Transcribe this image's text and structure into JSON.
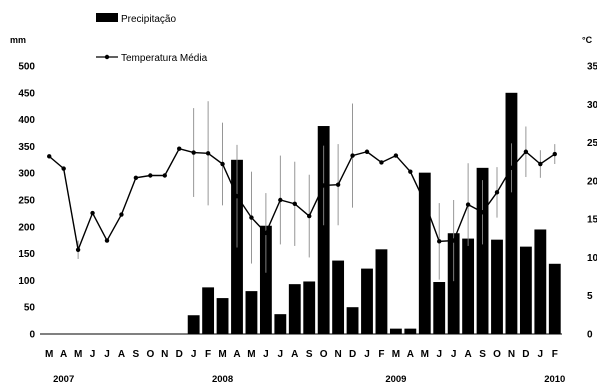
{
  "chart_data": {
    "type": "bar+line",
    "legend": [
      {
        "label": "Precipitação",
        "marker": "bar"
      },
      {
        "label": "Temperatura Média",
        "marker": "line-dot"
      }
    ],
    "left_axis": {
      "unit": "mm",
      "ylim": [
        0,
        500
      ],
      "ticks": [
        0,
        50,
        100,
        150,
        200,
        250,
        300,
        350,
        400,
        450,
        500
      ]
    },
    "right_axis": {
      "unit": "°C",
      "ylim": [
        0,
        35
      ],
      "ticks": [
        "0",
        "5",
        "10",
        "15",
        "20",
        "25",
        "30",
        "35"
      ]
    },
    "months": [
      "M",
      "A",
      "M",
      "J",
      "J",
      "A",
      "S",
      "O",
      "N",
      "D",
      "J",
      "F",
      "M",
      "A",
      "M",
      "J",
      "J",
      "A",
      "S",
      "O",
      "N",
      "D",
      "J",
      "F",
      "M",
      "A",
      "M",
      "J",
      "J",
      "A",
      "S",
      "O",
      "N",
      "D",
      "J",
      "F"
    ],
    "years": [
      {
        "label": "2007",
        "at_month_index": 1
      },
      {
        "label": "2008",
        "at_month_index": 12
      },
      {
        "label": "2009",
        "at_month_index": 24
      },
      {
        "label": "2010",
        "at_month_index": 35
      }
    ],
    "series": [
      {
        "name": "Precipitação",
        "type": "bar",
        "axis": "left",
        "color": "#000000",
        "values": [
          null,
          null,
          null,
          null,
          null,
          null,
          null,
          null,
          null,
          null,
          35,
          87,
          67,
          325,
          80,
          202,
          37,
          93,
          98,
          388,
          137,
          50,
          122,
          158,
          10,
          10,
          301,
          97,
          188,
          178,
          310,
          176,
          450,
          163,
          195,
          131
        ]
      },
      {
        "name": "Temperatura Média",
        "type": "line",
        "axis": "right",
        "color": "#000000",
        "values": [
          23.2,
          21.6,
          11.0,
          15.8,
          12.2,
          15.6,
          20.4,
          20.7,
          20.7,
          24.2,
          23.7,
          23.6,
          22.2,
          18.0,
          15.2,
          13.2,
          17.5,
          17.0,
          15.4,
          19.4,
          19.5,
          23.3,
          23.8,
          22.4,
          23.3,
          21.2,
          17.2,
          12.1,
          12.2,
          16.9,
          15.9,
          18.5,
          21.7,
          23.8,
          22.2,
          23.5
        ],
        "error_bars": [
          null,
          null,
          1.2,
          null,
          null,
          null,
          null,
          null,
          null,
          null,
          5.8,
          6.8,
          5.4,
          6.7,
          6.0,
          5.2,
          5.8,
          5.5,
          5.4,
          5.2,
          5.3,
          6.8,
          null,
          null,
          null,
          null,
          null,
          5.0,
          5.3,
          5.4,
          4.2,
          3.3,
          3.2,
          3.3,
          1.8,
          1.3
        ]
      }
    ]
  }
}
